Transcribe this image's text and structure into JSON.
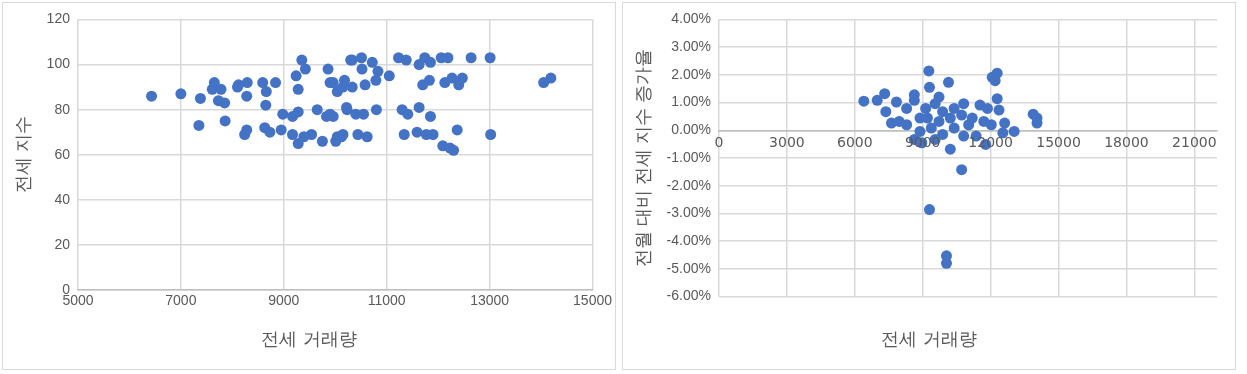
{
  "chart_data": [
    {
      "type": "scatter",
      "xlabel": "전세 거래량",
      "ylabel": "전세 지수",
      "xlim": [
        5000,
        15000
      ],
      "xticks": [
        5000,
        7000,
        9000,
        11000,
        13000,
        15000
      ],
      "ylim": [
        0,
        120
      ],
      "yticks": [
        0,
        20,
        40,
        60,
        80,
        100,
        120
      ],
      "grid": true,
      "marker": "circle",
      "series": [
        {
          "color": "#4472c4",
          "x": [
            6430,
            7000,
            7380,
            7650,
            7610,
            7780,
            7730,
            7850,
            7350,
            7860,
            8240,
            8280,
            8100,
            8120,
            8290,
            8280,
            8590,
            8660,
            8650,
            8630,
            8730,
            8840,
            8950,
            8980,
            9170,
            9280,
            9350,
            9420,
            9240,
            9280,
            9170,
            9280,
            9390,
            9540,
            9650,
            9830,
            9900,
            9750,
            9860,
            9900,
            10040,
            10010,
            10120,
            10230,
            10300,
            10150,
            10330,
            10510,
            10520,
            10720,
            10830,
            10790,
            10580,
            9960,
            10180,
            10330,
            10220,
            10400,
            10550,
            10800,
            9960,
            10040,
            10150,
            10440,
            10620,
            11050,
            11230,
            11380,
            11630,
            11740,
            11850,
            12060,
            12190,
            12640,
            13010,
            11700,
            11830,
            12130,
            12270,
            12400,
            12470,
            11300,
            11410,
            11630,
            11850,
            11340,
            11590,
            11770,
            11900,
            12090,
            12230,
            12300,
            12370,
            13020,
            14050,
            14190
          ],
          "values": [
            86,
            87,
            85,
            92,
            89,
            89,
            84,
            83,
            73,
            75,
            69,
            71,
            90,
            91,
            92,
            86,
            92,
            88,
            82,
            72,
            70,
            92,
            71,
            78,
            77,
            79,
            102,
            98,
            95,
            89,
            69,
            65,
            68,
            69,
            80,
            77,
            78,
            66,
            98,
            92,
            88,
            66,
            68,
            80,
            102,
            90,
            102,
            103,
            98,
            101,
            97,
            93,
            91,
            92,
            93,
            90,
            81,
            78,
            78,
            80,
            77,
            68,
            69,
            69,
            68,
            95,
            103,
            102,
            100,
            103,
            101,
            103,
            103,
            103,
            103,
            91,
            93,
            92,
            94,
            91,
            94,
            80,
            78,
            81,
            77,
            69,
            70,
            69,
            69,
            64,
            63,
            62,
            71,
            69,
            92,
            94
          ]
        }
      ]
    },
    {
      "type": "scatter",
      "xlabel": "전세 거래량",
      "ylabel": "전월 대비 전세 지수 증가율",
      "xlim": [
        0,
        22000
      ],
      "xticks": [
        0,
        3000,
        6000,
        9000,
        12000,
        15000,
        18000,
        21000
      ],
      "ylim": [
        -6,
        4
      ],
      "yticks": [
        {
          "value": -6,
          "label": "-6.00%"
        },
        {
          "value": -5,
          "label": "-5.00%"
        },
        {
          "value": -4,
          "label": "-4.00%"
        },
        {
          "value": -3,
          "label": "-3.00%"
        },
        {
          "value": -2,
          "label": "-2.00%"
        },
        {
          "value": -1,
          "label": "-1.00%"
        },
        {
          "value": 0,
          "label": "0.00%"
        },
        {
          "value": 1,
          "label": "1.00%"
        },
        {
          "value": 2,
          "label": "2.00%"
        },
        {
          "value": 3,
          "label": "3.00%"
        },
        {
          "value": 4,
          "label": "4.00%"
        }
      ],
      "grid": true,
      "marker": "circle",
      "series": [
        {
          "color": "#4472c4",
          "x": [
            6400,
            6990,
            7320,
            7370,
            7840,
            7620,
            7960,
            8290,
            8630,
            8630,
            8290,
            8630,
            8960,
            9270,
            9300,
            10140,
            9720,
            9130,
            9550,
            9210,
            9720,
            9880,
            10220,
            9380,
            9880,
            10390,
            10810,
            10720,
            10810,
            8880,
            10220,
            10720,
            9300,
            10050,
            10050,
            11190,
            11530,
            11860,
            11360,
            11780,
            12200,
            12070,
            12290,
            12290,
            12370,
            12620,
            13040,
            12540,
            12030,
            13880,
            14050,
            14050,
            8880,
            10390,
            11030,
            11700,
            9550
          ],
          "values": [
            1.05,
            1.08,
            1.32,
            0.67,
            1.02,
            0.26,
            0.32,
            0.79,
            1.28,
            1.08,
            0.2,
            -0.33,
            -0.45,
            2.14,
            1.55,
            1.73,
            1.2,
            0.79,
            0.96,
            0.44,
            0.32,
            0.67,
            0.44,
            0.08,
            -0.15,
            0.08,
            0.96,
            0.55,
            -0.21,
            -0.04,
            -0.68,
            -1.42,
            -2.86,
            -4.53,
            -4.8,
            0.44,
            0.91,
            0.79,
            -0.21,
            -0.51,
            1.79,
            1.91,
            2.06,
            1.14,
            0.73,
            0.26,
            -0.04,
            -0.09,
            0.2,
            0.58,
            0.44,
            0.26,
            0.44,
            0.79,
            0.2,
            0.32,
            -0.33
          ]
        }
      ]
    }
  ]
}
